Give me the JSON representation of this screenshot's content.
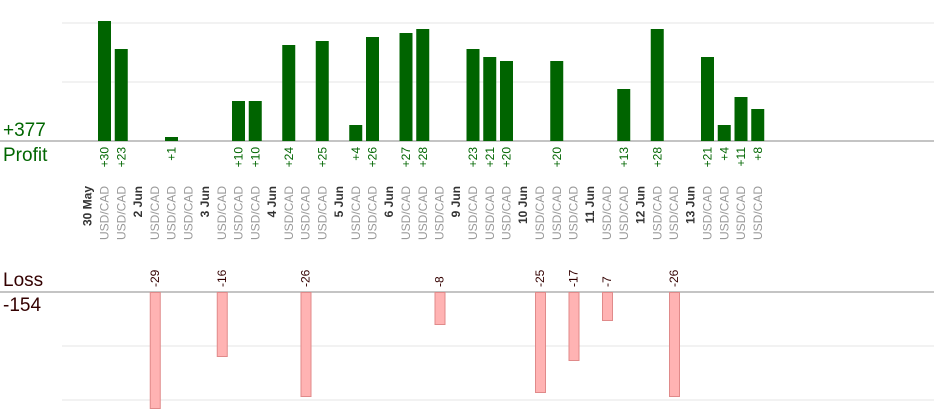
{
  "summary": {
    "profit_total": "+377",
    "profit_label": "Profit",
    "loss_label": "Loss",
    "loss_total": "-154"
  },
  "colors": {
    "profit_bar": "#006400",
    "loss_bar": "#ffb3b3",
    "loss_bar_edge": "#e08a8a",
    "profit_text": "#006600",
    "loss_text": "#330000",
    "gridline": "#e6e6e6",
    "axis": "#888888",
    "date_text": "#333333",
    "pair_text": "#999999"
  },
  "chart_data": {
    "type": "bar",
    "title": "",
    "xlabel": "",
    "ylabel": "",
    "grid": true,
    "profit_ylim": [
      0,
      28
    ],
    "loss_ylim": [
      0,
      28
    ],
    "slots": [
      {
        "date": "30 May",
        "trades": [
          {
            "pair": "USD/CAD",
            "profit": 30
          },
          {
            "pair": "USD/CAD",
            "profit": 23
          }
        ]
      },
      {
        "date": "2 Jun",
        "trades": [
          {
            "pair": "USD/CAD",
            "loss": -29
          },
          {
            "pair": "USD/CAD",
            "profit": 1
          },
          {
            "pair": "USD/CAD"
          }
        ]
      },
      {
        "date": "3 Jun",
        "trades": [
          {
            "pair": "USD/CAD",
            "loss": -16
          },
          {
            "pair": "USD/CAD",
            "profit": 10
          },
          {
            "pair": "USD/CAD",
            "profit": 10
          }
        ]
      },
      {
        "date": "4 Jun",
        "trades": [
          {
            "pair": "USD/CAD",
            "profit": 24
          },
          {
            "pair": "USD/CAD",
            "loss": -26
          },
          {
            "pair": "USD/CAD",
            "profit": 25
          }
        ]
      },
      {
        "date": "5 Jun",
        "trades": [
          {
            "pair": "USD/CAD",
            "profit": 4
          },
          {
            "pair": "USD/CAD",
            "profit": 26
          }
        ]
      },
      {
        "date": "6 Jun",
        "trades": [
          {
            "pair": "USD/CAD",
            "profit": 27
          },
          {
            "pair": "USD/CAD",
            "profit": 28
          },
          {
            "pair": "USD/CAD",
            "loss": -8
          }
        ]
      },
      {
        "date": "9 Jun",
        "trades": [
          {
            "pair": "USD/CAD",
            "profit": 23
          },
          {
            "pair": "USD/CAD",
            "profit": 21
          },
          {
            "pair": "USD/CAD",
            "profit": 20
          }
        ]
      },
      {
        "date": "10 Jun",
        "trades": [
          {
            "pair": "USD/CAD",
            "loss": -25
          },
          {
            "pair": "USD/CAD",
            "profit": 20
          },
          {
            "pair": "USD/CAD",
            "loss": -17
          }
        ]
      },
      {
        "date": "11 Jun",
        "trades": [
          {
            "pair": "USD/CAD",
            "loss": -7
          },
          {
            "pair": "USD/CAD",
            "profit": 13
          }
        ]
      },
      {
        "date": "12 Jun",
        "trades": [
          {
            "pair": "USD/CAD",
            "profit": 28
          },
          {
            "pair": "USD/CAD",
            "loss": -26
          }
        ]
      },
      {
        "date": "13 Jun",
        "trades": [
          {
            "pair": "USD/CAD",
            "profit": 21
          },
          {
            "pair": "USD/CAD",
            "profit": 4
          },
          {
            "pair": "USD/CAD",
            "profit": 11
          },
          {
            "pair": "USD/CAD",
            "profit": 8
          }
        ]
      }
    ]
  }
}
